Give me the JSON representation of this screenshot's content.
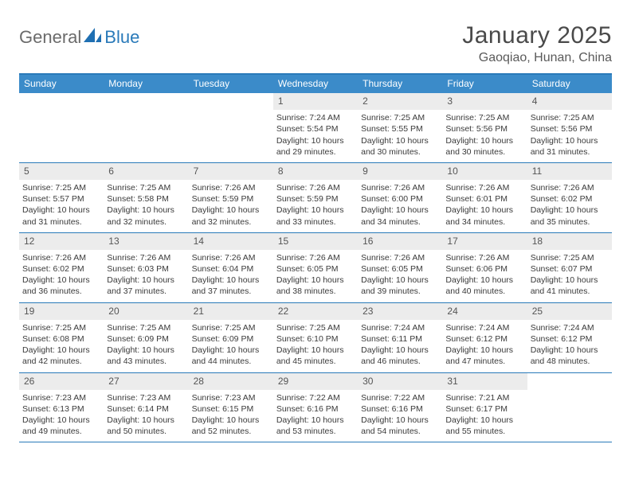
{
  "logo": {
    "part1": "General",
    "part2": "Blue"
  },
  "title": "January 2025",
  "location": "Gaoqiao, Hunan, China",
  "colors": {
    "header_bg": "#3b8bc9",
    "border": "#2a7ab9",
    "daynum_bg": "#ececec",
    "text": "#3a3a3a",
    "logo_gray": "#6b6b6b",
    "logo_blue": "#2a7ab9"
  },
  "weekdays": [
    "Sunday",
    "Monday",
    "Tuesday",
    "Wednesday",
    "Thursday",
    "Friday",
    "Saturday"
  ],
  "weeks": [
    [
      {
        "n": "",
        "lines": []
      },
      {
        "n": "",
        "lines": []
      },
      {
        "n": "",
        "lines": []
      },
      {
        "n": "1",
        "lines": [
          "Sunrise: 7:24 AM",
          "Sunset: 5:54 PM",
          "Daylight: 10 hours",
          "and 29 minutes."
        ]
      },
      {
        "n": "2",
        "lines": [
          "Sunrise: 7:25 AM",
          "Sunset: 5:55 PM",
          "Daylight: 10 hours",
          "and 30 minutes."
        ]
      },
      {
        "n": "3",
        "lines": [
          "Sunrise: 7:25 AM",
          "Sunset: 5:56 PM",
          "Daylight: 10 hours",
          "and 30 minutes."
        ]
      },
      {
        "n": "4",
        "lines": [
          "Sunrise: 7:25 AM",
          "Sunset: 5:56 PM",
          "Daylight: 10 hours",
          "and 31 minutes."
        ]
      }
    ],
    [
      {
        "n": "5",
        "lines": [
          "Sunrise: 7:25 AM",
          "Sunset: 5:57 PM",
          "Daylight: 10 hours",
          "and 31 minutes."
        ]
      },
      {
        "n": "6",
        "lines": [
          "Sunrise: 7:25 AM",
          "Sunset: 5:58 PM",
          "Daylight: 10 hours",
          "and 32 minutes."
        ]
      },
      {
        "n": "7",
        "lines": [
          "Sunrise: 7:26 AM",
          "Sunset: 5:59 PM",
          "Daylight: 10 hours",
          "and 32 minutes."
        ]
      },
      {
        "n": "8",
        "lines": [
          "Sunrise: 7:26 AM",
          "Sunset: 5:59 PM",
          "Daylight: 10 hours",
          "and 33 minutes."
        ]
      },
      {
        "n": "9",
        "lines": [
          "Sunrise: 7:26 AM",
          "Sunset: 6:00 PM",
          "Daylight: 10 hours",
          "and 34 minutes."
        ]
      },
      {
        "n": "10",
        "lines": [
          "Sunrise: 7:26 AM",
          "Sunset: 6:01 PM",
          "Daylight: 10 hours",
          "and 34 minutes."
        ]
      },
      {
        "n": "11",
        "lines": [
          "Sunrise: 7:26 AM",
          "Sunset: 6:02 PM",
          "Daylight: 10 hours",
          "and 35 minutes."
        ]
      }
    ],
    [
      {
        "n": "12",
        "lines": [
          "Sunrise: 7:26 AM",
          "Sunset: 6:02 PM",
          "Daylight: 10 hours",
          "and 36 minutes."
        ]
      },
      {
        "n": "13",
        "lines": [
          "Sunrise: 7:26 AM",
          "Sunset: 6:03 PM",
          "Daylight: 10 hours",
          "and 37 minutes."
        ]
      },
      {
        "n": "14",
        "lines": [
          "Sunrise: 7:26 AM",
          "Sunset: 6:04 PM",
          "Daylight: 10 hours",
          "and 37 minutes."
        ]
      },
      {
        "n": "15",
        "lines": [
          "Sunrise: 7:26 AM",
          "Sunset: 6:05 PM",
          "Daylight: 10 hours",
          "and 38 minutes."
        ]
      },
      {
        "n": "16",
        "lines": [
          "Sunrise: 7:26 AM",
          "Sunset: 6:05 PM",
          "Daylight: 10 hours",
          "and 39 minutes."
        ]
      },
      {
        "n": "17",
        "lines": [
          "Sunrise: 7:26 AM",
          "Sunset: 6:06 PM",
          "Daylight: 10 hours",
          "and 40 minutes."
        ]
      },
      {
        "n": "18",
        "lines": [
          "Sunrise: 7:25 AM",
          "Sunset: 6:07 PM",
          "Daylight: 10 hours",
          "and 41 minutes."
        ]
      }
    ],
    [
      {
        "n": "19",
        "lines": [
          "Sunrise: 7:25 AM",
          "Sunset: 6:08 PM",
          "Daylight: 10 hours",
          "and 42 minutes."
        ]
      },
      {
        "n": "20",
        "lines": [
          "Sunrise: 7:25 AM",
          "Sunset: 6:09 PM",
          "Daylight: 10 hours",
          "and 43 minutes."
        ]
      },
      {
        "n": "21",
        "lines": [
          "Sunrise: 7:25 AM",
          "Sunset: 6:09 PM",
          "Daylight: 10 hours",
          "and 44 minutes."
        ]
      },
      {
        "n": "22",
        "lines": [
          "Sunrise: 7:25 AM",
          "Sunset: 6:10 PM",
          "Daylight: 10 hours",
          "and 45 minutes."
        ]
      },
      {
        "n": "23",
        "lines": [
          "Sunrise: 7:24 AM",
          "Sunset: 6:11 PM",
          "Daylight: 10 hours",
          "and 46 minutes."
        ]
      },
      {
        "n": "24",
        "lines": [
          "Sunrise: 7:24 AM",
          "Sunset: 6:12 PM",
          "Daylight: 10 hours",
          "and 47 minutes."
        ]
      },
      {
        "n": "25",
        "lines": [
          "Sunrise: 7:24 AM",
          "Sunset: 6:12 PM",
          "Daylight: 10 hours",
          "and 48 minutes."
        ]
      }
    ],
    [
      {
        "n": "26",
        "lines": [
          "Sunrise: 7:23 AM",
          "Sunset: 6:13 PM",
          "Daylight: 10 hours",
          "and 49 minutes."
        ]
      },
      {
        "n": "27",
        "lines": [
          "Sunrise: 7:23 AM",
          "Sunset: 6:14 PM",
          "Daylight: 10 hours",
          "and 50 minutes."
        ]
      },
      {
        "n": "28",
        "lines": [
          "Sunrise: 7:23 AM",
          "Sunset: 6:15 PM",
          "Daylight: 10 hours",
          "and 52 minutes."
        ]
      },
      {
        "n": "29",
        "lines": [
          "Sunrise: 7:22 AM",
          "Sunset: 6:16 PM",
          "Daylight: 10 hours",
          "and 53 minutes."
        ]
      },
      {
        "n": "30",
        "lines": [
          "Sunrise: 7:22 AM",
          "Sunset: 6:16 PM",
          "Daylight: 10 hours",
          "and 54 minutes."
        ]
      },
      {
        "n": "31",
        "lines": [
          "Sunrise: 7:21 AM",
          "Sunset: 6:17 PM",
          "Daylight: 10 hours",
          "and 55 minutes."
        ]
      },
      {
        "n": "",
        "lines": []
      }
    ]
  ]
}
